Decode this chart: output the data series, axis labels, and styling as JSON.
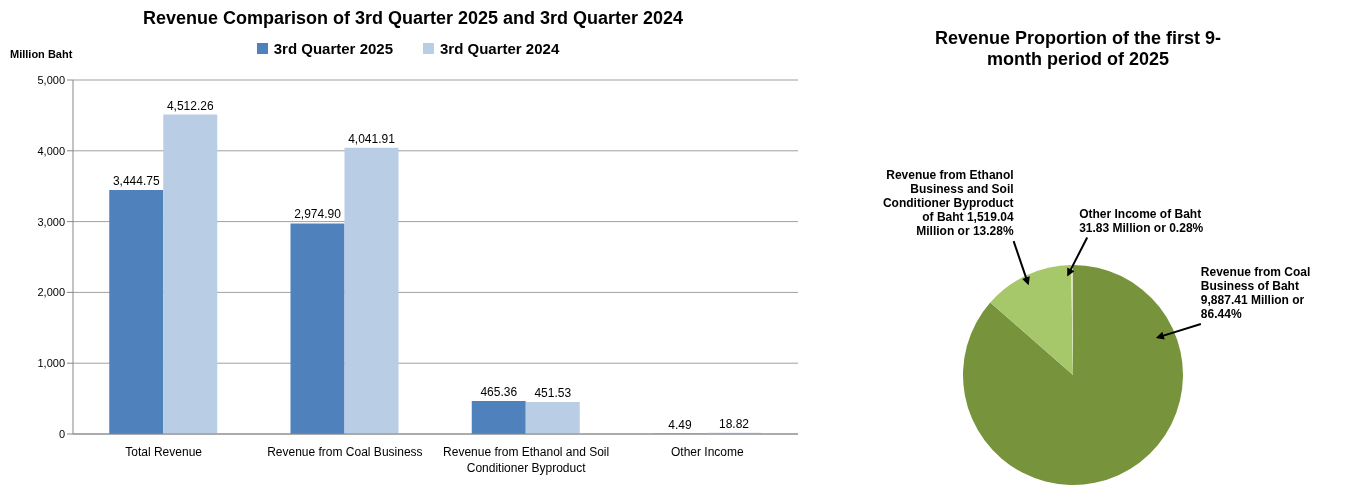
{
  "chart_data": [
    {
      "type": "bar",
      "title": "Revenue Comparison of 3rd Quarter 2025 and 3rd Quarter 2024",
      "ylabel": "Million Baht",
      "categories": [
        "Total Revenue",
        "Revenue from Coal Business",
        "Revenue from Ethanol and Soil Conditioner Byproduct",
        "Other Income"
      ],
      "series": [
        {
          "name": "3rd Quarter 2025",
          "color": "#4f81bd",
          "values": [
            3444.75,
            2974.9,
            465.36,
            4.49
          ],
          "value_labels": [
            "3,444.75",
            "2,974.90",
            "465.36",
            "4.49"
          ]
        },
        {
          "name": "3rd Quarter 2024",
          "color": "#b9cde5",
          "values": [
            4512.26,
            4041.91,
            451.53,
            18.82
          ],
          "value_labels": [
            "4,512.26",
            "4,041.91",
            "451.53",
            "18.82"
          ]
        }
      ],
      "ylim": [
        0,
        5000
      ],
      "yticks": [
        0,
        {
          "value": 1000,
          "label": "1,000"
        },
        {
          "value": 2000,
          "label": "2,000"
        },
        {
          "value": 3000,
          "label": "3,000"
        },
        {
          "value": 4000,
          "label": "4,000"
        },
        {
          "value": 5000,
          "label": "5,000"
        }
      ],
      "grid": "y",
      "legend": "top"
    },
    {
      "type": "pie",
      "title": "Revenue Proportion of the first 9-month period of 2025",
      "categories": [
        "Revenue from Coal Business of Baht 9,887.41 Million or 86.44%",
        "Revenue from Ethanol Business and Soil Conditioner Byproduct of Baht 1,519.04 Million or 13.28%",
        "Other Income of Baht 31.83 Million or 0.28%"
      ],
      "values": [
        9887.41,
        1519.04,
        31.83
      ],
      "colors": [
        "#77933c",
        "#a6c76a",
        "#d7e4bd"
      ]
    }
  ]
}
